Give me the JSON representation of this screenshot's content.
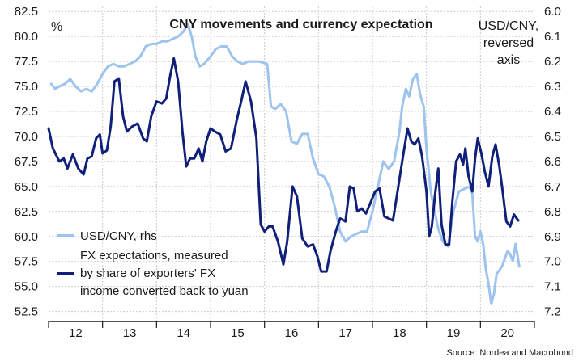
{
  "chart_data": {
    "type": "line",
    "title": "CNY movements and currency expectation",
    "ylabel_left": "%",
    "ylabel_right": [
      "USD/CNY,",
      "reversed",
      "axis"
    ],
    "source": "Source: Nordea and Macrobond",
    "x_tick_labels": [
      "12",
      "13",
      "14",
      "15",
      "16",
      "17",
      "18",
      "19",
      "20"
    ],
    "x_range": [
      2011.5,
      2020.5
    ],
    "left_axis": {
      "range": [
        51.5,
        83.0
      ],
      "ticks": [
        52.5,
        55.0,
        57.5,
        60.0,
        62.5,
        65.0,
        67.5,
        70.0,
        72.5,
        75.0,
        77.5,
        80.0,
        82.5
      ],
      "tick_labels": [
        "52.5",
        "55.0",
        "57.5",
        "60.0",
        "62.5",
        "65.0",
        "67.5",
        "70.0",
        "72.5",
        "75.0",
        "77.5",
        "80.0",
        "82.5"
      ]
    },
    "right_axis": {
      "reversed": true,
      "range": [
        6.0,
        7.25
      ],
      "ticks": [
        6.0,
        6.1,
        6.2,
        6.3,
        6.4,
        6.5,
        6.6,
        6.7,
        6.8,
        6.9,
        7.0,
        7.1,
        7.2
      ],
      "tick_labels": [
        "6.0",
        "6.1",
        "6.2",
        "6.3",
        "6.4",
        "6.5",
        "6.6",
        "6.7",
        "6.8",
        "6.9",
        "7.0",
        "7.1",
        "7.2"
      ]
    },
    "series": [
      {
        "name": "USD/CNY, rhs",
        "axis": "right",
        "color": "#9ec3ee",
        "points": [
          [
            2011.55,
            6.29
          ],
          [
            2011.62,
            6.31
          ],
          [
            2011.7,
            6.3
          ],
          [
            2011.8,
            6.29
          ],
          [
            2011.9,
            6.27
          ],
          [
            2012.0,
            6.3
          ],
          [
            2012.1,
            6.32
          ],
          [
            2012.2,
            6.31
          ],
          [
            2012.3,
            6.32
          ],
          [
            2012.4,
            6.29
          ],
          [
            2012.5,
            6.25
          ],
          [
            2012.6,
            6.22
          ],
          [
            2012.7,
            6.21
          ],
          [
            2012.8,
            6.22
          ],
          [
            2012.9,
            6.22
          ],
          [
            2013.0,
            6.21
          ],
          [
            2013.1,
            6.2
          ],
          [
            2013.2,
            6.18
          ],
          [
            2013.3,
            6.14
          ],
          [
            2013.4,
            6.13
          ],
          [
            2013.5,
            6.13
          ],
          [
            2013.6,
            6.12
          ],
          [
            2013.7,
            6.12
          ],
          [
            2013.8,
            6.11
          ],
          [
            2013.9,
            6.1
          ],
          [
            2014.0,
            6.08
          ],
          [
            2014.08,
            6.05
          ],
          [
            2014.15,
            6.1
          ],
          [
            2014.22,
            6.18
          ],
          [
            2014.3,
            6.22
          ],
          [
            2014.38,
            6.21
          ],
          [
            2014.5,
            6.18
          ],
          [
            2014.6,
            6.15
          ],
          [
            2014.7,
            6.14
          ],
          [
            2014.8,
            6.14
          ],
          [
            2014.9,
            6.18
          ],
          [
            2015.0,
            6.2
          ],
          [
            2015.1,
            6.21
          ],
          [
            2015.2,
            6.2
          ],
          [
            2015.3,
            6.2
          ],
          [
            2015.4,
            6.2
          ],
          [
            2015.55,
            6.21
          ],
          [
            2015.62,
            6.38
          ],
          [
            2015.7,
            6.39
          ],
          [
            2015.8,
            6.37
          ],
          [
            2015.9,
            6.4
          ],
          [
            2016.0,
            6.52
          ],
          [
            2016.1,
            6.53
          ],
          [
            2016.2,
            6.49
          ],
          [
            2016.3,
            6.49
          ],
          [
            2016.4,
            6.59
          ],
          [
            2016.5,
            6.65
          ],
          [
            2016.6,
            6.66
          ],
          [
            2016.7,
            6.7
          ],
          [
            2016.8,
            6.78
          ],
          [
            2016.9,
            6.88
          ],
          [
            2017.0,
            6.92
          ],
          [
            2017.1,
            6.9
          ],
          [
            2017.2,
            6.89
          ],
          [
            2017.3,
            6.88
          ],
          [
            2017.4,
            6.88
          ],
          [
            2017.5,
            6.8
          ],
          [
            2017.6,
            6.7
          ],
          [
            2017.7,
            6.6
          ],
          [
            2017.8,
            6.63
          ],
          [
            2017.9,
            6.6
          ],
          [
            2018.0,
            6.48
          ],
          [
            2018.05,
            6.38
          ],
          [
            2018.12,
            6.31
          ],
          [
            2018.18,
            6.34
          ],
          [
            2018.25,
            6.27
          ],
          [
            2018.32,
            6.25
          ],
          [
            2018.38,
            6.33
          ],
          [
            2018.45,
            6.38
          ],
          [
            2018.5,
            6.55
          ],
          [
            2018.58,
            6.72
          ],
          [
            2018.65,
            6.8
          ],
          [
            2018.72,
            6.87
          ],
          [
            2018.8,
            6.92
          ],
          [
            2018.9,
            6.94
          ],
          [
            2019.0,
            6.8
          ],
          [
            2019.1,
            6.72
          ],
          [
            2019.2,
            6.71
          ],
          [
            2019.3,
            6.7
          ],
          [
            2019.35,
            6.73
          ],
          [
            2019.4,
            6.9
          ],
          [
            2019.45,
            6.92
          ],
          [
            2019.5,
            6.88
          ],
          [
            2019.55,
            6.93
          ],
          [
            2019.6,
            7.03
          ],
          [
            2019.65,
            7.09
          ],
          [
            2019.7,
            7.17
          ],
          [
            2019.75,
            7.13
          ],
          [
            2019.8,
            7.05
          ],
          [
            2019.9,
            7.02
          ],
          [
            2020.0,
            6.96
          ],
          [
            2020.05,
            6.97
          ],
          [
            2020.1,
            7.0
          ],
          [
            2020.15,
            6.93
          ],
          [
            2020.22,
            7.02
          ]
        ]
      },
      {
        "name": "FX expectations, measured by share of exporters' FX income converted back to yuan",
        "legend_lines": [
          "FX expectations, measured",
          "by share of exporters' FX",
          "income converted back to yuan"
        ],
        "axis": "left",
        "color": "#10207a",
        "points": [
          [
            2011.5,
            70.8
          ],
          [
            2011.58,
            68.8
          ],
          [
            2011.7,
            67.5
          ],
          [
            2011.78,
            67.8
          ],
          [
            2011.85,
            66.8
          ],
          [
            2011.95,
            68.2
          ],
          [
            2012.05,
            66.8
          ],
          [
            2012.15,
            66.2
          ],
          [
            2012.22,
            67.8
          ],
          [
            2012.3,
            68.0
          ],
          [
            2012.38,
            69.8
          ],
          [
            2012.45,
            70.2
          ],
          [
            2012.5,
            68.3
          ],
          [
            2012.58,
            68.6
          ],
          [
            2012.65,
            71.0
          ],
          [
            2012.72,
            75.5
          ],
          [
            2012.8,
            75.8
          ],
          [
            2012.88,
            72.0
          ],
          [
            2012.95,
            70.5
          ],
          [
            2013.05,
            71.0
          ],
          [
            2013.15,
            71.3
          ],
          [
            2013.25,
            69.8
          ],
          [
            2013.32,
            69.5
          ],
          [
            2013.4,
            72.0
          ],
          [
            2013.5,
            73.5
          ],
          [
            2013.6,
            73.3
          ],
          [
            2013.68,
            73.8
          ],
          [
            2013.75,
            76.0
          ],
          [
            2013.82,
            77.8
          ],
          [
            2013.9,
            75.5
          ],
          [
            2013.98,
            70.5
          ],
          [
            2014.05,
            67.0
          ],
          [
            2014.12,
            67.8
          ],
          [
            2014.2,
            67.8
          ],
          [
            2014.28,
            68.8
          ],
          [
            2014.35,
            67.5
          ],
          [
            2014.42,
            69.5
          ],
          [
            2014.5,
            70.8
          ],
          [
            2014.58,
            70.5
          ],
          [
            2014.68,
            70.2
          ],
          [
            2014.78,
            68.5
          ],
          [
            2014.88,
            68.8
          ],
          [
            2014.98,
            71.5
          ],
          [
            2015.08,
            73.8
          ],
          [
            2015.15,
            75.5
          ],
          [
            2015.25,
            73.5
          ],
          [
            2015.35,
            69.8
          ],
          [
            2015.43,
            61.2
          ],
          [
            2015.5,
            60.5
          ],
          [
            2015.58,
            61.0
          ],
          [
            2015.65,
            61.0
          ],
          [
            2015.75,
            59.5
          ],
          [
            2015.85,
            57.2
          ],
          [
            2015.92,
            59.5
          ],
          [
            2016.02,
            65.0
          ],
          [
            2016.1,
            64.0
          ],
          [
            2016.2,
            59.8
          ],
          [
            2016.3,
            59.0
          ],
          [
            2016.4,
            59.2
          ],
          [
            2016.48,
            58.0
          ],
          [
            2016.55,
            56.5
          ],
          [
            2016.65,
            56.5
          ],
          [
            2016.72,
            58.5
          ],
          [
            2016.82,
            60.5
          ],
          [
            2016.9,
            61.8
          ],
          [
            2017.0,
            61.5
          ],
          [
            2017.08,
            65.0
          ],
          [
            2017.15,
            64.8
          ],
          [
            2017.22,
            62.5
          ],
          [
            2017.3,
            62.8
          ],
          [
            2017.38,
            62.3
          ],
          [
            2017.45,
            63.2
          ],
          [
            2017.55,
            64.5
          ],
          [
            2017.63,
            64.8
          ],
          [
            2017.72,
            62.0
          ],
          [
            2017.8,
            61.8
          ],
          [
            2017.88,
            61.6
          ],
          [
            2017.95,
            64.0
          ],
          [
            2018.05,
            67.5
          ],
          [
            2018.15,
            70.8
          ],
          [
            2018.22,
            69.5
          ],
          [
            2018.28,
            69.2
          ],
          [
            2018.35,
            69.8
          ],
          [
            2018.42,
            68.0
          ],
          [
            2018.5,
            64.5
          ],
          [
            2018.55,
            60.0
          ],
          [
            2018.6,
            61.0
          ],
          [
            2018.66,
            64.2
          ],
          [
            2018.72,
            66.8
          ],
          [
            2018.78,
            61.2
          ],
          [
            2018.85,
            59.2
          ],
          [
            2018.92,
            59.2
          ],
          [
            2018.98,
            63.5
          ],
          [
            2019.05,
            67.5
          ],
          [
            2019.12,
            68.2
          ],
          [
            2019.18,
            67.2
          ],
          [
            2019.22,
            68.8
          ],
          [
            2019.28,
            66.0
          ],
          [
            2019.35,
            64.5
          ],
          [
            2019.4,
            67.8
          ],
          [
            2019.45,
            69.8
          ],
          [
            2019.52,
            68.2
          ],
          [
            2019.58,
            66.5
          ],
          [
            2019.65,
            65.0
          ],
          [
            2019.72,
            68.0
          ],
          [
            2019.78,
            69.2
          ],
          [
            2019.85,
            67.0
          ],
          [
            2019.9,
            65.0
          ],
          [
            2019.98,
            61.5
          ],
          [
            2020.05,
            61.0
          ],
          [
            2020.12,
            62.2
          ],
          [
            2020.2,
            61.6
          ]
        ]
      }
    ],
    "legend": {
      "placement": "lower-left"
    }
  }
}
